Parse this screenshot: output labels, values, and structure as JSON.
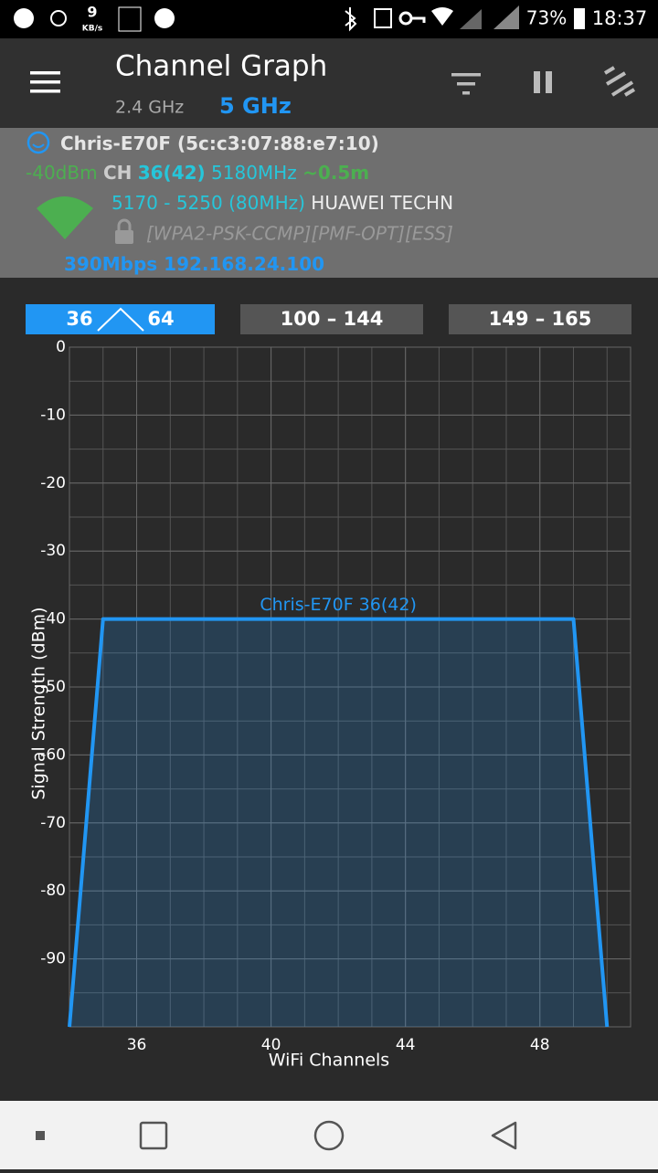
{
  "status_bar": {
    "net_speed": "9",
    "net_unit": "KB/s",
    "battery": "73%",
    "time": "18:37"
  },
  "app_bar": {
    "title": "Channel Graph",
    "bands": [
      "2.4 GHz",
      "5 GHz"
    ]
  },
  "network": {
    "ssid": "Chris-E70F",
    "bssid": "(5c:c3:07:88:e7:10)",
    "signal": "-40dBm",
    "ch_label": "CH",
    "channel": "36(42)",
    "frequency": "5180MHz",
    "distance": "~0.5m",
    "range": "5170 - 5250 (80MHz)",
    "vendor": "HUAWEI TECHN",
    "security": "[WPA2-PSK-CCMP][PMF-OPT][ESS]",
    "speed": "390Mbps",
    "ip": "192.168.24.100"
  },
  "tabs": [
    {
      "from": "36",
      "to": "64"
    },
    {
      "label": "100 – 144"
    },
    {
      "label": "149 – 165"
    }
  ],
  "chart_data": {
    "type": "line",
    "x_label": "WiFi Channels",
    "y_label": "Signal Strength (dBm)",
    "xlim": [
      34,
      50.7
    ],
    "xticks": [
      36,
      40,
      44,
      48
    ],
    "ylim": [
      -100,
      0
    ],
    "yticks": [
      0,
      -10,
      -20,
      -30,
      -40,
      -50,
      -60,
      -70,
      -80,
      -90
    ],
    "grid": true,
    "grid_step": {
      "x": 1,
      "y": 5
    },
    "series": [
      {
        "name": "Chris-E70F 36(42)",
        "color": "#2196f3",
        "x": [
          34,
          35,
          49,
          50
        ],
        "values": [
          -100,
          -40,
          -40,
          -100
        ]
      }
    ]
  }
}
